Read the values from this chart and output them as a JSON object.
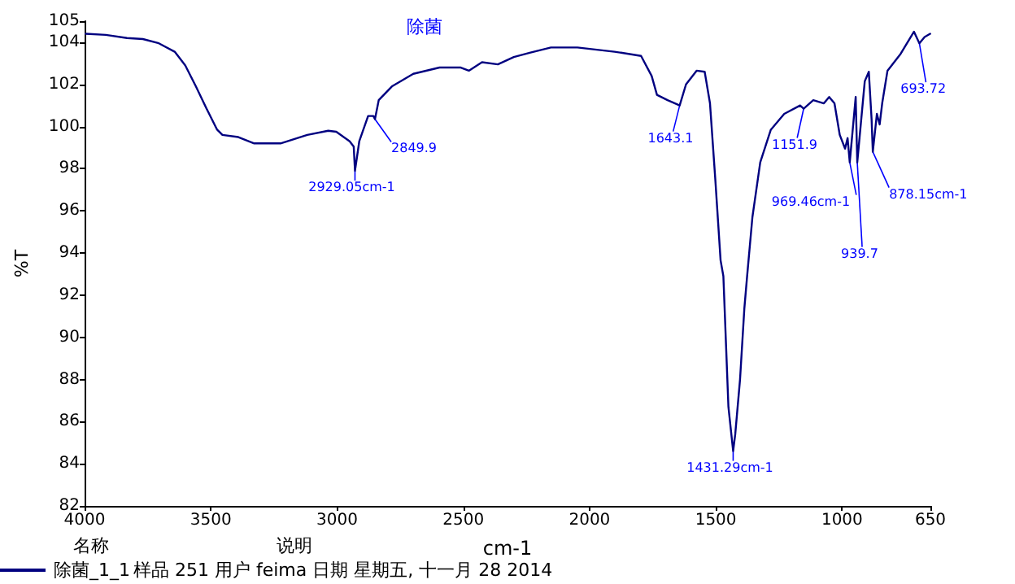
{
  "chart_data": {
    "type": "line",
    "title": "除菌",
    "xlabel": "cm-1",
    "ylabel": "%T",
    "xlim": [
      4000,
      650
    ],
    "ylim": [
      82,
      105
    ],
    "xticks": [
      4000,
      3500,
      3000,
      2500,
      2000,
      1500,
      1000,
      650
    ],
    "yticks": [
      82,
      84,
      86,
      88,
      90,
      92,
      94,
      96,
      98,
      100,
      102,
      104,
      105
    ],
    "grid": false,
    "legend": "bottom left",
    "marker": "none",
    "line_style": "solid",
    "series": [
      {
        "name": "除菌_1_1",
        "color": "#000080",
        "x": [
          3996,
          3916,
          3832,
          3769,
          3706,
          3643,
          3601,
          3559,
          3517,
          3475,
          3454,
          3391,
          3328,
          3224,
          3118,
          3035,
          3003,
          2950,
          2934,
          2929.05,
          2912,
          2877,
          2856,
          2849.9,
          2835,
          2783,
          2698,
          2594,
          2510,
          2478,
          2426,
          2363,
          2300,
          2237,
          2153,
          2048,
          1901,
          1796,
          1754,
          1733,
          1691,
          1643.1,
          1618,
          1576,
          1544,
          1523,
          1502,
          1481,
          1470,
          1450,
          1431.29,
          1423,
          1404,
          1387,
          1376,
          1355,
          1324,
          1282,
          1229,
          1166,
          1151.9,
          1114,
          1072,
          1051,
          1030,
          1009,
          988,
          978,
          969.46,
          946,
          939.7,
          910,
          894,
          883,
          878.15,
          862,
          851,
          841,
          820,
          768,
          715,
          693.72,
          673,
          651
        ],
        "values": [
          104.4,
          104.35,
          104.2,
          104.15,
          103.95,
          103.55,
          102.9,
          101.9,
          100.85,
          99.85,
          99.6,
          99.5,
          99.2,
          99.2,
          99.6,
          99.8,
          99.75,
          99.3,
          99.05,
          97.9,
          99.3,
          100.5,
          100.5,
          100.35,
          101.25,
          101.9,
          102.5,
          102.8,
          102.8,
          102.65,
          103.05,
          102.95,
          103.3,
          103.5,
          103.75,
          103.75,
          103.55,
          103.35,
          102.4,
          101.5,
          101.25,
          101.0,
          102.0,
          102.65,
          102.6,
          101.1,
          97.5,
          93.65,
          92.9,
          86.7,
          84.6,
          85.4,
          88.0,
          91.35,
          92.9,
          95.7,
          98.3,
          99.85,
          100.6,
          101.0,
          100.85,
          101.25,
          101.1,
          101.4,
          101.1,
          99.6,
          98.95,
          99.45,
          98.3,
          101.4,
          98.3,
          102.15,
          102.6,
          100.35,
          98.8,
          100.6,
          100.1,
          101.1,
          102.65,
          103.45,
          104.5,
          103.95,
          104.25,
          104.4
        ]
      }
    ],
    "annotations": [
      {
        "text": "2929.05cm-1",
        "x": 2929.05,
        "y": 97.9
      },
      {
        "text": "2849.9",
        "x": 2849.9,
        "y": 100.35
      },
      {
        "text": "1643.1",
        "x": 1643.1,
        "y": 101.0
      },
      {
        "text": "1431.29cm-1",
        "x": 1431.29,
        "y": 84.6
      },
      {
        "text": "1151.9",
        "x": 1151.9,
        "y": 100.85
      },
      {
        "text": "969.46cm-1",
        "x": 969.46,
        "y": 98.3
      },
      {
        "text": "939.7",
        "x": 939.7,
        "y": 98.3
      },
      {
        "text": "878.15cm-1",
        "x": 878.15,
        "y": 98.8
      },
      {
        "text": "693.72",
        "x": 693.72,
        "y": 103.95
      },
      "名称",
      "说明",
      "样品 251 用户 feima 日期 星期五, 十一月 28 2014"
    ]
  }
}
